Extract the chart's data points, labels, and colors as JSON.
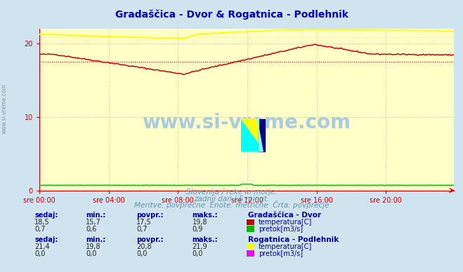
{
  "title": "Gradaščica - Dvor & Rogatnica - Podlehnik",
  "title_color": "#0000cc",
  "bg_color": "#d0e4f0",
  "plot_bg_color": "#ffffc8",
  "grid_color": "#ffaaaa",
  "grid_linestyle": "dotted",
  "xlabel_ticks": [
    "sre 00:00",
    "sre 04:00",
    "sre 08:00",
    "sre 12:00",
    "sre 16:00",
    "sre 20:00"
  ],
  "xlabel_ticks_pos": [
    0,
    48,
    96,
    144,
    192,
    240
  ],
  "xlim": [
    0,
    287
  ],
  "ylim": [
    0,
    22
  ],
  "yticks": [
    0,
    10,
    20
  ],
  "subtitle1": "Slovenija / reke in morje.",
  "subtitle2": "zadnji dan / 5 minut.",
  "subtitle3": "Meritve: povprečne  Enote: metrične  Črta: povprečje",
  "subtitle_color": "#6699aa",
  "watermark": "www.si-vreme.com",
  "watermark_color": "#aaccdd",
  "station1_name": "Gradaščica - Dvor",
  "station1_temp_color": "#cc0000",
  "station1_flow_color": "#00bb00",
  "station1_sedaj": "18,5",
  "station1_min": "15,7",
  "station1_povpr": "17,5",
  "station1_maks": "19,8",
  "station1_flow_sedaj": "0,7",
  "station1_flow_min": "0,6",
  "station1_flow_povpr": "0,7",
  "station1_flow_maks": "0,9",
  "station2_name": "Rogatnica - Podlehnik",
  "station2_temp_color": "#ffff00",
  "station2_flow_color": "#ff00ff",
  "station2_sedaj": "21,4",
  "station2_min": "19,8",
  "station2_povpr": "20,8",
  "station2_maks": "21,9",
  "station2_flow_sedaj": "0,0",
  "station2_flow_min": "0,0",
  "station2_flow_povpr": "0,0",
  "station2_flow_maks": "0,0",
  "label_color": "#0000aa",
  "axis_color": "#cc0000",
  "tick_color": "#cc0000",
  "avg_value_temp1": 17.5,
  "avg_value_temp2": 20.8,
  "left_label": "www.si-vreme.com"
}
